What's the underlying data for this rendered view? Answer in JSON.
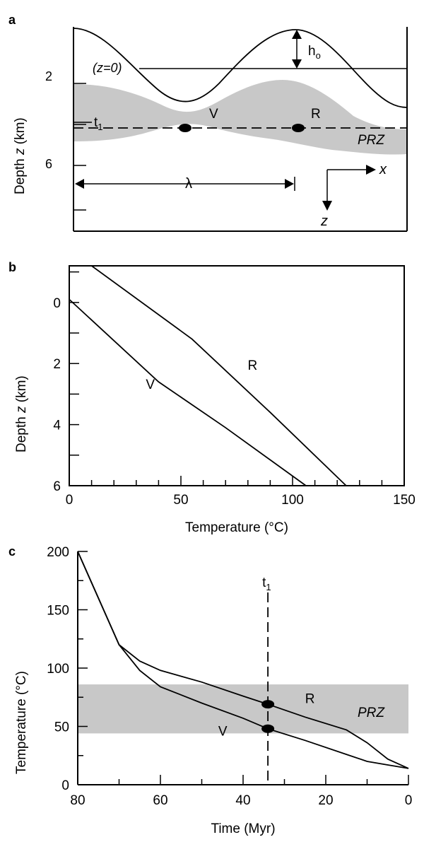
{
  "chart_data": [
    {
      "panel": "a",
      "type": "diagram",
      "panel_label": "a",
      "ylabel_prefix": "Depth ",
      "ylabel_var": "z",
      "ylabel_suffix": " (km)",
      "y_ticks": [
        {
          "value": 2,
          "label": "2"
        },
        {
          "value": 6,
          "label": "6"
        }
      ],
      "zero_level_label": "(z=0)",
      "amplitude_label": "h",
      "amplitude_sub": "o",
      "time_label": "t",
      "time_sub": "1",
      "valley_label": "V",
      "ridge_label": "R",
      "prz_label": "PRZ",
      "wavelength_label": "λ",
      "axis_x_label": "x",
      "axis_z_label": "z",
      "colors": {
        "prz_fill": "#c8c8c8",
        "line": "#000000"
      }
    },
    {
      "panel": "b",
      "type": "line",
      "panel_label": "b",
      "xlabel": "Temperature (°C)",
      "ylabel_prefix": "Depth ",
      "ylabel_var": "z",
      "ylabel_suffix": " (km)",
      "xlim": [
        0,
        150
      ],
      "ylim": [
        -1.2,
        6
      ],
      "y_inverted": true,
      "x_ticks": [
        {
          "value": 0,
          "label": "0"
        },
        {
          "value": 50,
          "label": "50"
        },
        {
          "value": 100,
          "label": "100"
        },
        {
          "value": 150,
          "label": "150"
        }
      ],
      "y_ticks": [
        {
          "value": 0,
          "label": "0"
        },
        {
          "value": 2,
          "label": "2"
        },
        {
          "value": 4,
          "label": "4"
        },
        {
          "value": 6,
          "label": "6"
        }
      ],
      "series": [
        {
          "name": "V",
          "x": [
            0,
            40,
            70,
            106
          ],
          "y": [
            -0.1,
            2.6,
            4.1,
            6
          ]
        },
        {
          "name": "R",
          "x": [
            10,
            55,
            90,
            124
          ],
          "y": [
            -1.2,
            1.2,
            3.6,
            6
          ]
        }
      ]
    },
    {
      "panel": "c",
      "type": "line",
      "panel_label": "c",
      "xlabel": "Time (Myr)",
      "ylabel": "Temperature (°C)",
      "xlim": [
        80,
        0
      ],
      "ylim": [
        0,
        200
      ],
      "x_ticks": [
        {
          "value": 80,
          "label": "80"
        },
        {
          "value": 60,
          "label": "60"
        },
        {
          "value": 40,
          "label": "40"
        },
        {
          "value": 20,
          "label": "20"
        },
        {
          "value": 0,
          "label": "0"
        }
      ],
      "y_ticks": [
        {
          "value": 0,
          "label": "0"
        },
        {
          "value": 50,
          "label": "50"
        },
        {
          "value": 100,
          "label": "100"
        },
        {
          "value": 150,
          "label": "150"
        },
        {
          "value": 200,
          "label": "200"
        }
      ],
      "prz_band": [
        44,
        86
      ],
      "prz_label": "PRZ",
      "t1": 34,
      "t1_label": "t",
      "t1_sub": "1",
      "series": [
        {
          "name": "R",
          "x": [
            80,
            75,
            70,
            65,
            60,
            50,
            40,
            34,
            25,
            15,
            10,
            5,
            0
          ],
          "y": [
            200,
            160,
            120,
            106,
            98,
            88,
            76,
            69,
            58,
            47,
            36,
            22,
            14
          ]
        },
        {
          "name": "V",
          "x": [
            80,
            75,
            70,
            65,
            60,
            50,
            40,
            34,
            25,
            15,
            10,
            5,
            0
          ],
          "y": [
            200,
            160,
            120,
            98,
            84,
            70,
            57,
            48,
            38,
            26,
            20,
            17,
            14
          ]
        }
      ]
    }
  ]
}
